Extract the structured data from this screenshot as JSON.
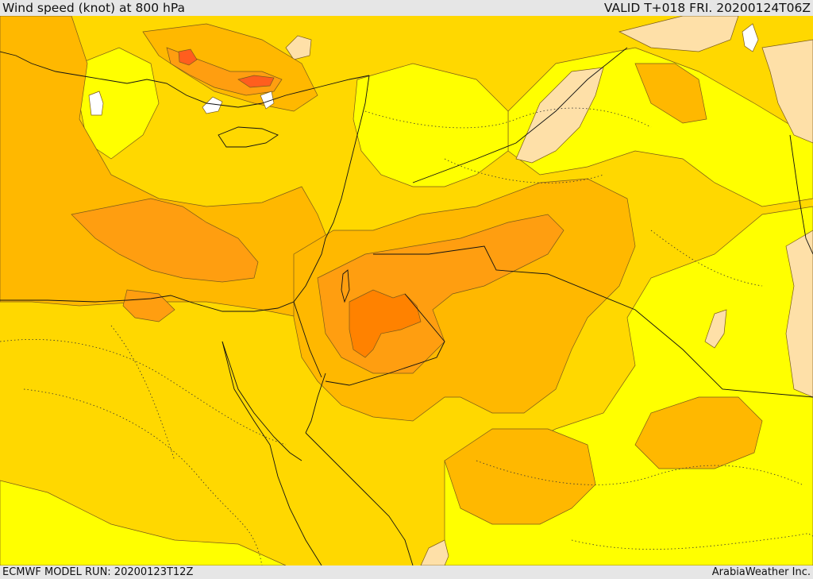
{
  "header": {
    "title": "Wind speed (knot) at 800 hPa",
    "valid_time": "VALID T+018 FRI. 20200124T06Z"
  },
  "footer": {
    "model_run": "ECMWF MODEL RUN: 20200123T12Z",
    "credit": "ArabiaWeather Inc."
  },
  "map": {
    "colors": {
      "very_light": "#fee0a8",
      "light_yellow": "#ffff00",
      "gold": "#ffd800",
      "amber": "#ffb800",
      "orange": "#ff9e10",
      "dark_orange": "#ff8200",
      "red_orange": "#ff5e1e",
      "calm_white": "#ffffff",
      "contour": "#7a5a1a",
      "coast_border": "#111111"
    }
  }
}
